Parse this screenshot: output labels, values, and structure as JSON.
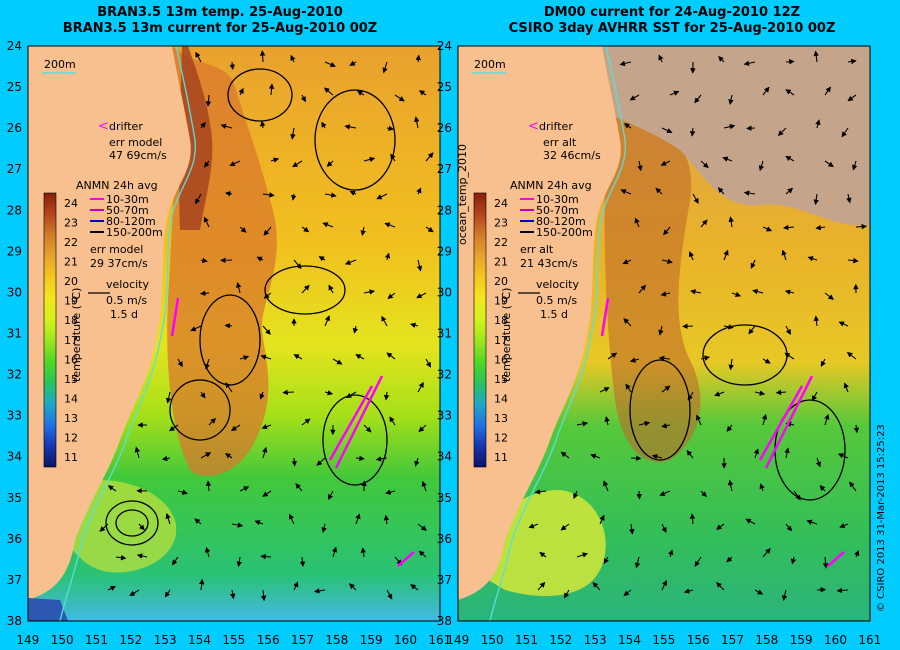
{
  "left_panel": {
    "title_line1": "BRAN3.5 13m temp. 25-Aug-2010",
    "title_line2": "BRAN3.5 13m current for 25-Aug-2010 00Z",
    "isobath_label": "200m",
    "drifter_label": "drifter",
    "err_model_label_1": "err model",
    "err_model_value_1": "47 69cm/s",
    "anmn_title": "ANMN 24h avg",
    "depth_bins": [
      "10-30m",
      "50-70m",
      "80-120m",
      "150-200m"
    ],
    "err_model_label_2": "err model",
    "err_model_value_2": "29 37cm/s",
    "velocity_label": "velocity",
    "velocity_value": "0.5 m/s",
    "velocity_duration": "1.5 d",
    "colorbar_title": "temperature (°C)"
  },
  "right_panel": {
    "title_line1": "DM00 current for 24-Aug-2010 12Z",
    "title_line2": "CSIRO 3day AVHRR SST for 25-Aug-2010 00Z",
    "isobath_label": "200m",
    "drifter_label": "drifter",
    "err_label_1": "err alt",
    "err_value_1": "32 46cm/s",
    "anmn_title": "ANMN 24h avg",
    "depth_bins": [
      "10-30m",
      "50-70m",
      "80-120m",
      "150-200m"
    ],
    "err_label_2": "err alt",
    "err_value_2": "21 43cm/s",
    "velocity_label": "velocity",
    "velocity_value": "0.5 m/s",
    "velocity_duration": "1.5 d",
    "colorbar_title": "temperature (°C)"
  },
  "vertical_labels": {
    "middle": "ocean_temp_2010",
    "credit": "© CSIRO 2013   31-Mar-2013 15:25:23"
  },
  "axes": {
    "lon_ticks": [
      "149",
      "150",
      "151",
      "152",
      "153",
      "154",
      "155",
      "156",
      "157",
      "158",
      "159",
      "160",
      "161"
    ],
    "lat_ticks": [
      "24",
      "25",
      "26",
      "27",
      "28",
      "29",
      "30",
      "31",
      "32",
      "33",
      "34",
      "35",
      "36",
      "37",
      "38"
    ]
  },
  "colorbar": {
    "ticks": [
      "24",
      "23",
      "22",
      "21",
      "20",
      "19",
      "18",
      "17",
      "16",
      "15",
      "14",
      "13",
      "12",
      "11"
    ],
    "range": [
      10.5,
      24.5
    ]
  },
  "colors": {
    "background": "#00CCFF",
    "land": "#F7C08E",
    "cloud": "#C4A58C",
    "drifter": "#FF00FF",
    "bin_10_30": "#FF00FF",
    "bin_50_70": "#C000C0",
    "bin_80_120": "#0000CC",
    "bin_150_200": "#000000",
    "isobath": "#55E0E0",
    "vector": "#000000"
  }
}
